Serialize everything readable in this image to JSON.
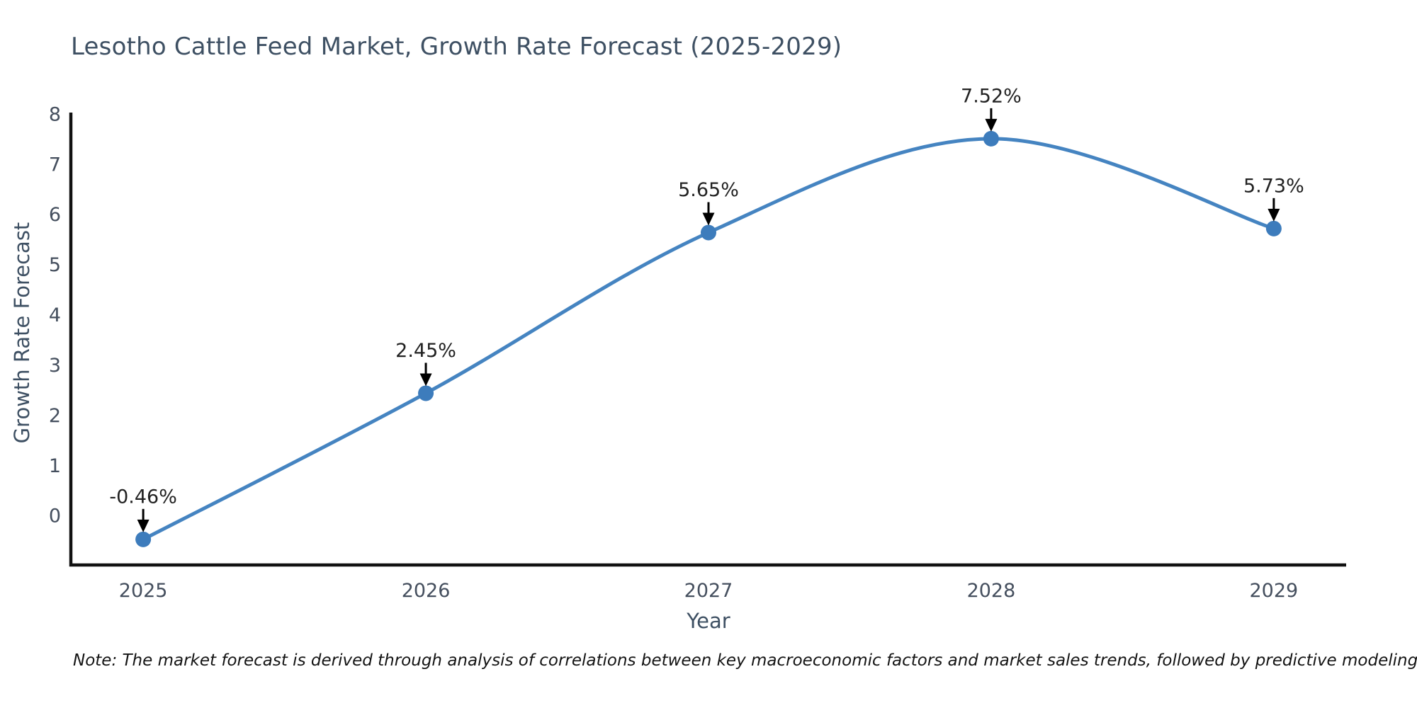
{
  "title": "Lesotho Cattle Feed Market, Growth Rate Forecast (2025-2029)",
  "note": "Note: The market forecast is derived through analysis of correlations between key macroeconomic factors and market sales trends, followed by predictive modeling to project future sales.",
  "chart_data": {
    "type": "line",
    "title": "Lesotho Cattle Feed Market, Growth Rate Forecast (2025-2029)",
    "xlabel": "Year",
    "ylabel": "Growth Rate Forecast",
    "categories": [
      2025,
      2026,
      2027,
      2028,
      2029
    ],
    "xtick_labels": [
      "2025",
      "2026",
      "2027",
      "2028",
      "2029"
    ],
    "values": [
      -0.46,
      2.45,
      5.65,
      7.52,
      5.73
    ],
    "point_labels": [
      "-0.46%",
      "2.45%",
      "5.65%",
      "7.52%",
      "5.73%"
    ],
    "yticks": [
      0,
      1,
      2,
      3,
      4,
      5,
      6,
      7,
      8
    ],
    "ylim": [
      -0.97,
      8.04
    ],
    "xlim": [
      2024.744,
      2029.256
    ],
    "grid": false,
    "legend": false,
    "line_shape": "spline",
    "colors": {
      "line": "#4584c1",
      "marker": "#3d7cbc",
      "axis_line": "#111111",
      "tick_text": "#454f5e",
      "title_text": "#3e5063",
      "annotation_text": "#222222",
      "arrow": "#000000",
      "note_text": "#141414",
      "background": "#ffffff"
    }
  }
}
